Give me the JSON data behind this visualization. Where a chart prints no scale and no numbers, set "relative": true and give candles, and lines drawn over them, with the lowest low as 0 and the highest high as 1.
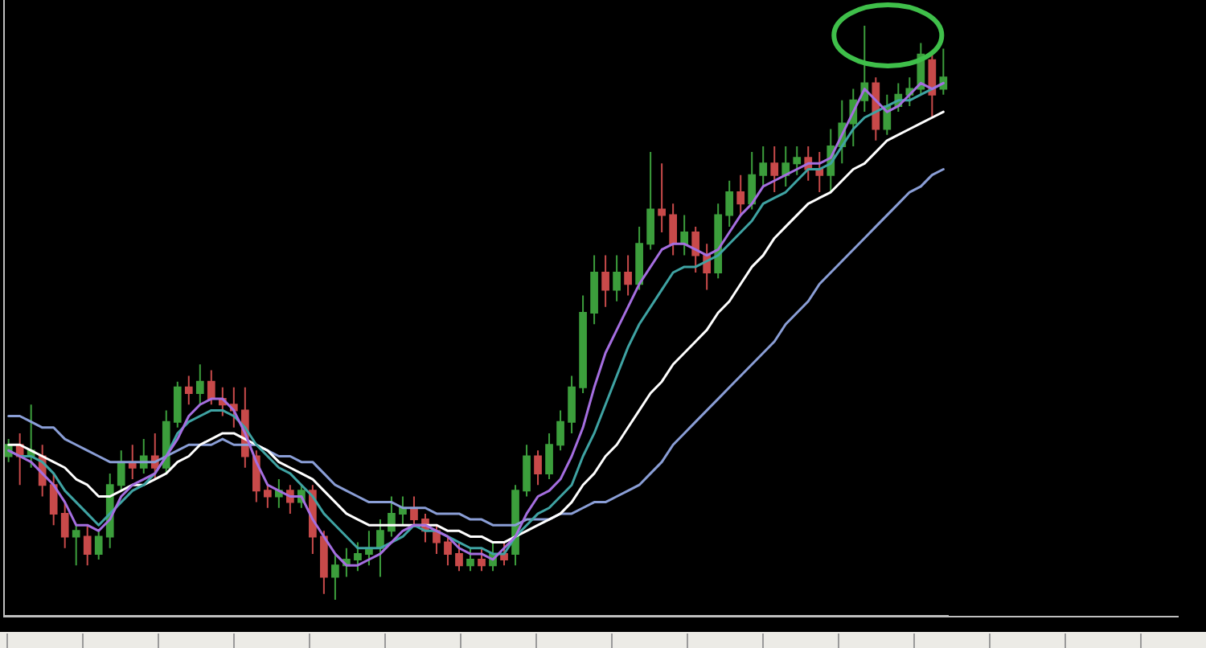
{
  "chart_data": {
    "type": "candlestick",
    "relative": true,
    "tick_labels": false,
    "categories": [
      null,
      null,
      null,
      null,
      null,
      null,
      null,
      null,
      null,
      null,
      null,
      null,
      null,
      null,
      null,
      null,
      null,
      null,
      null,
      null,
      null,
      null,
      null,
      null,
      null,
      null,
      null,
      null,
      null,
      null,
      null,
      null,
      null,
      null,
      null,
      null,
      null,
      null,
      null,
      null,
      null,
      null,
      null,
      null,
      null,
      null,
      null,
      null,
      null,
      null,
      null,
      null,
      null,
      null,
      null,
      null,
      null,
      null,
      null,
      null,
      null,
      null,
      null,
      null,
      null,
      null,
      null,
      null,
      null,
      null,
      null,
      null,
      null,
      null,
      null,
      null,
      null,
      null,
      null,
      null,
      null,
      null,
      null,
      null
    ],
    "ohlc": [
      [
        0.25,
        0.28,
        0.24,
        0.27
      ],
      [
        0.27,
        0.29,
        0.2,
        0.25
      ],
      [
        0.25,
        0.34,
        0.23,
        0.26
      ],
      [
        0.25,
        0.27,
        0.18,
        0.2
      ],
      [
        0.2,
        0.22,
        0.13,
        0.15
      ],
      [
        0.15,
        0.17,
        0.09,
        0.11
      ],
      [
        0.11,
        0.13,
        0.06,
        0.12
      ],
      [
        0.11,
        0.13,
        0.06,
        0.08
      ],
      [
        0.08,
        0.12,
        0.07,
        0.11
      ],
      [
        0.11,
        0.22,
        0.09,
        0.2
      ],
      [
        0.2,
        0.26,
        0.19,
        0.24
      ],
      [
        0.24,
        0.27,
        0.21,
        0.23
      ],
      [
        0.23,
        0.28,
        0.22,
        0.25
      ],
      [
        0.25,
        0.29,
        0.21,
        0.23
      ],
      [
        0.23,
        0.33,
        0.22,
        0.31
      ],
      [
        0.31,
        0.38,
        0.3,
        0.37
      ],
      [
        0.37,
        0.39,
        0.34,
        0.36
      ],
      [
        0.36,
        0.41,
        0.34,
        0.38
      ],
      [
        0.38,
        0.4,
        0.34,
        0.35
      ],
      [
        0.35,
        0.37,
        0.32,
        0.34
      ],
      [
        0.34,
        0.37,
        0.3,
        0.33
      ],
      [
        0.33,
        0.37,
        0.23,
        0.25
      ],
      [
        0.25,
        0.26,
        0.17,
        0.19
      ],
      [
        0.19,
        0.2,
        0.16,
        0.18
      ],
      [
        0.18,
        0.21,
        0.16,
        0.19
      ],
      [
        0.19,
        0.2,
        0.15,
        0.17
      ],
      [
        0.17,
        0.2,
        0.16,
        0.19
      ],
      [
        0.19,
        0.2,
        0.08,
        0.11
      ],
      [
        0.11,
        0.12,
        0.01,
        0.04
      ],
      [
        0.04,
        0.08,
        0,
        0.06
      ],
      [
        0.06,
        0.09,
        0.04,
        0.07
      ],
      [
        0.07,
        0.1,
        0.05,
        0.08
      ],
      [
        0.08,
        0.12,
        0.06,
        0.09
      ],
      [
        0.09,
        0.14,
        0.04,
        0.12
      ],
      [
        0.12,
        0.18,
        0.11,
        0.15
      ],
      [
        0.15,
        0.18,
        0.13,
        0.16
      ],
      [
        0.16,
        0.18,
        0.13,
        0.14
      ],
      [
        0.14,
        0.15,
        0.1,
        0.12
      ],
      [
        0.12,
        0.13,
        0.08,
        0.1
      ],
      [
        0.1,
        0.11,
        0.06,
        0.08
      ],
      [
        0.08,
        0.1,
        0.05,
        0.06
      ],
      [
        0.06,
        0.09,
        0.05,
        0.07
      ],
      [
        0.07,
        0.09,
        0.05,
        0.06
      ],
      [
        0.06,
        0.1,
        0.05,
        0.08
      ],
      [
        0.08,
        0.1,
        0.06,
        0.07
      ],
      [
        0.08,
        0.2,
        0.06,
        0.19
      ],
      [
        0.19,
        0.27,
        0.18,
        0.25
      ],
      [
        0.25,
        0.26,
        0.2,
        0.22
      ],
      [
        0.22,
        0.29,
        0.21,
        0.27
      ],
      [
        0.27,
        0.33,
        0.26,
        0.31
      ],
      [
        0.31,
        0.39,
        0.29,
        0.37
      ],
      [
        0.37,
        0.53,
        0.36,
        0.5
      ],
      [
        0.5,
        0.6,
        0.48,
        0.57
      ],
      [
        0.57,
        0.6,
        0.51,
        0.54
      ],
      [
        0.54,
        0.6,
        0.52,
        0.57
      ],
      [
        0.57,
        0.6,
        0.53,
        0.55
      ],
      [
        0.55,
        0.65,
        0.54,
        0.62
      ],
      [
        0.62,
        0.78,
        0.61,
        0.68
      ],
      [
        0.68,
        0.76,
        0.64,
        0.67
      ],
      [
        0.67,
        0.69,
        0.6,
        0.62
      ],
      [
        0.62,
        0.67,
        0.6,
        0.64
      ],
      [
        0.64,
        0.65,
        0.57,
        0.6
      ],
      [
        0.6,
        0.62,
        0.54,
        0.57
      ],
      [
        0.57,
        0.69,
        0.56,
        0.67
      ],
      [
        0.67,
        0.73,
        0.65,
        0.71
      ],
      [
        0.71,
        0.74,
        0.67,
        0.69
      ],
      [
        0.69,
        0.78,
        0.68,
        0.74
      ],
      [
        0.74,
        0.79,
        0.72,
        0.76
      ],
      [
        0.76,
        0.79,
        0.71,
        0.74
      ],
      [
        0.74,
        0.79,
        0.72,
        0.76
      ],
      [
        0.76,
        0.79,
        0.74,
        0.77
      ],
      [
        0.77,
        0.79,
        0.73,
        0.75
      ],
      [
        0.75,
        0.78,
        0.71,
        0.74
      ],
      [
        0.74,
        0.82,
        0.71,
        0.79
      ],
      [
        0.79,
        0.87,
        0.76,
        0.83
      ],
      [
        0.83,
        0.89,
        0.79,
        0.87
      ],
      [
        0.87,
        1,
        0.85,
        0.9
      ],
      [
        0.9,
        0.91,
        0.8,
        0.82
      ],
      [
        0.82,
        0.88,
        0.81,
        0.86
      ],
      [
        0.86,
        0.9,
        0.85,
        0.88
      ],
      [
        0.88,
        0.91,
        0.86,
        0.89
      ],
      [
        0.89,
        0.97,
        0.88,
        0.95
      ],
      [
        0.94,
        0.95,
        0.84,
        0.88
      ],
      [
        0.89,
        0.96,
        0.88,
        0.91
      ]
    ],
    "colors": [
      "#3c9e3c",
      "#c84a4a",
      "#3c9e3c",
      "#c84a4a",
      "#c84a4a",
      "#c84a4a",
      "#3c9e3c",
      "#c84a4a",
      "#3c9e3c",
      "#3c9e3c",
      "#3c9e3c",
      "#c84a4a",
      "#3c9e3c",
      "#c84a4a",
      "#3c9e3c",
      "#3c9e3c",
      "#c84a4a",
      "#3c9e3c",
      "#c84a4a",
      "#c84a4a",
      "#c84a4a",
      "#c84a4a",
      "#c84a4a",
      "#c84a4a",
      "#3c9e3c",
      "#c84a4a",
      "#3c9e3c",
      "#c84a4a",
      "#c84a4a",
      "#3c9e3c",
      "#3c9e3c",
      "#3c9e3c",
      "#3c9e3c",
      "#3c9e3c",
      "#3c9e3c",
      "#3c9e3c",
      "#c84a4a",
      "#c84a4a",
      "#c84a4a",
      "#c84a4a",
      "#c84a4a",
      "#3c9e3c",
      "#c84a4a",
      "#3c9e3c",
      "#c84a4a",
      "#3c9e3c",
      "#3c9e3c",
      "#c84a4a",
      "#3c9e3c",
      "#3c9e3c",
      "#3c9e3c",
      "#3c9e3c",
      "#3c9e3c",
      "#c84a4a",
      "#3c9e3c",
      "#c84a4a",
      "#3c9e3c",
      "#3c9e3c",
      "#c84a4a",
      "#c84a4a",
      "#3c9e3c",
      "#c84a4a",
      "#c84a4a",
      "#3c9e3c",
      "#3c9e3c",
      "#c84a4a",
      "#3c9e3c",
      "#3c9e3c",
      "#c84a4a",
      "#3c9e3c",
      "#3c9e3c",
      "#c84a4a",
      "#c84a4a",
      "#3c9e3c",
      "#3c9e3c",
      "#3c9e3c",
      "#3c9e3c",
      "#c84a4a",
      "#3c9e3c",
      "#3c9e3c",
      "#3c9e3c",
      "#3c9e3c",
      "#c84a4a",
      "#3c9e3c"
    ],
    "series": [
      {
        "type": "line",
        "color": "#8a9ed6",
        "values": [
          0.32,
          0.32,
          0.31,
          0.3,
          0.3,
          0.28,
          0.27,
          0.26,
          0.25,
          0.24,
          0.24,
          0.24,
          0.24,
          0.24,
          0.25,
          0.26,
          0.27,
          0.27,
          0.27,
          0.28,
          0.27,
          0.27,
          0.27,
          0.26,
          0.25,
          0.25,
          0.24,
          0.24,
          0.22,
          0.2,
          0.19,
          0.18,
          0.17,
          0.17,
          0.17,
          0.16,
          0.16,
          0.16,
          0.15,
          0.15,
          0.15,
          0.14,
          0.14,
          0.13,
          0.13,
          0.13,
          0.14,
          0.14,
          0.14,
          0.15,
          0.15,
          0.16,
          0.17,
          0.17,
          0.18,
          0.19,
          0.2,
          0.22,
          0.24,
          0.27,
          0.29,
          0.31,
          0.33,
          0.35,
          0.37,
          0.39,
          0.41,
          0.43,
          0.45,
          0.48,
          0.5,
          0.52,
          0.55,
          0.57,
          0.59,
          0.61,
          0.63,
          0.65,
          0.67,
          0.69,
          0.71,
          0.72,
          0.74,
          0.75
        ]
      },
      {
        "type": "line",
        "color": "#ffffff",
        "values": [
          0.27,
          0.27,
          0.26,
          0.25,
          0.24,
          0.23,
          0.21,
          0.2,
          0.18,
          0.18,
          0.19,
          0.2,
          0.2,
          0.21,
          0.22,
          0.24,
          0.25,
          0.27,
          0.28,
          0.29,
          0.29,
          0.28,
          0.27,
          0.26,
          0.24,
          0.23,
          0.22,
          0.21,
          0.19,
          0.17,
          0.15,
          0.14,
          0.13,
          0.13,
          0.13,
          0.13,
          0.13,
          0.13,
          0.13,
          0.12,
          0.12,
          0.11,
          0.11,
          0.1,
          0.1,
          0.11,
          0.12,
          0.13,
          0.14,
          0.15,
          0.17,
          0.2,
          0.22,
          0.25,
          0.27,
          0.3,
          0.33,
          0.36,
          0.38,
          0.41,
          0.43,
          0.45,
          0.47,
          0.5,
          0.52,
          0.55,
          0.58,
          0.6,
          0.63,
          0.65,
          0.67,
          0.69,
          0.7,
          0.71,
          0.73,
          0.75,
          0.76,
          0.78,
          0.8,
          0.81,
          0.82,
          0.83,
          0.84,
          0.85
        ]
      },
      {
        "type": "line",
        "color": "#3fa3a3",
        "values": [
          0.26,
          0.25,
          0.25,
          0.24,
          0.22,
          0.19,
          0.17,
          0.15,
          0.13,
          0.15,
          0.17,
          0.19,
          0.2,
          0.22,
          0.25,
          0.29,
          0.31,
          0.32,
          0.33,
          0.33,
          0.32,
          0.3,
          0.27,
          0.25,
          0.23,
          0.22,
          0.2,
          0.18,
          0.15,
          0.13,
          0.11,
          0.09,
          0.09,
          0.09,
          0.1,
          0.11,
          0.13,
          0.12,
          0.12,
          0.11,
          0.1,
          0.09,
          0.09,
          0.08,
          0.08,
          0.11,
          0.13,
          0.15,
          0.16,
          0.18,
          0.2,
          0.25,
          0.29,
          0.34,
          0.39,
          0.44,
          0.48,
          0.51,
          0.54,
          0.57,
          0.58,
          0.58,
          0.59,
          0.6,
          0.62,
          0.64,
          0.66,
          0.69,
          0.7,
          0.71,
          0.73,
          0.75,
          0.75,
          0.76,
          0.79,
          0.82,
          0.84,
          0.85,
          0.86,
          0.87,
          0.87,
          0.88,
          0.89,
          0.9
        ]
      },
      {
        "type": "line",
        "color": "#a56ee0",
        "values": [
          0.26,
          0.25,
          0.24,
          0.22,
          0.2,
          0.17,
          0.13,
          0.13,
          0.12,
          0.14,
          0.18,
          0.2,
          0.21,
          0.22,
          0.25,
          0.28,
          0.32,
          0.34,
          0.35,
          0.35,
          0.33,
          0.29,
          0.24,
          0.2,
          0.19,
          0.18,
          0.18,
          0.14,
          0.11,
          0.08,
          0.06,
          0.06,
          0.07,
          0.08,
          0.1,
          0.12,
          0.13,
          0.13,
          0.12,
          0.11,
          0.09,
          0.08,
          0.08,
          0.07,
          0.09,
          0.11,
          0.15,
          0.18,
          0.19,
          0.21,
          0.25,
          0.3,
          0.37,
          0.43,
          0.47,
          0.51,
          0.55,
          0.58,
          0.61,
          0.62,
          0.62,
          0.61,
          0.6,
          0.61,
          0.64,
          0.67,
          0.69,
          0.72,
          0.73,
          0.74,
          0.75,
          0.76,
          0.76,
          0.77,
          0.81,
          0.85,
          0.89,
          0.87,
          0.85,
          0.86,
          0.88,
          0.9,
          0.89,
          0.9
        ]
      }
    ]
  }
}
